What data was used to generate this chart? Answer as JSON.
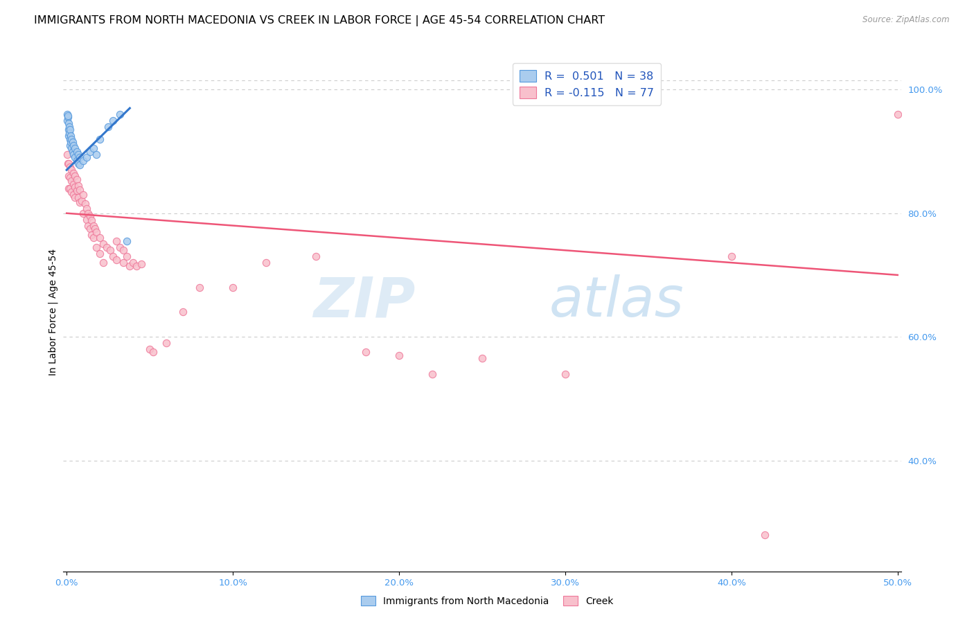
{
  "title": "IMMIGRANTS FROM NORTH MACEDONIA VS CREEK IN LABOR FORCE | AGE 45-54 CORRELATION CHART",
  "source": "Source: ZipAtlas.com",
  "ylabel": "In Labor Force | Age 45-54",
  "xlim": [
    -0.002,
    0.502
  ],
  "ylim": [
    0.22,
    1.06
  ],
  "xticks": [
    0.0,
    0.1,
    0.2,
    0.3,
    0.4,
    0.5
  ],
  "xticklabels": [
    "0.0%",
    "10.0%",
    "20.0%",
    "30.0%",
    "40.0%",
    "50.0%"
  ],
  "yticks_right": [
    0.4,
    0.6,
    0.8,
    1.0
  ],
  "yticklabels_right": [
    "40.0%",
    "60.0%",
    "80.0%",
    "100.0%"
  ],
  "blue_color": "#aaccee",
  "pink_color": "#f8c0cc",
  "blue_edge": "#5599dd",
  "pink_edge": "#ee7799",
  "trendline_blue": "#3377cc",
  "trendline_pink": "#ee5577",
  "blue_pts": [
    [
      0.0003,
      0.95
    ],
    [
      0.0005,
      0.96
    ],
    [
      0.0007,
      0.955
    ],
    [
      0.0008,
      0.958
    ],
    [
      0.001,
      0.945
    ],
    [
      0.001,
      0.935
    ],
    [
      0.001,
      0.925
    ],
    [
      0.0015,
      0.94
    ],
    [
      0.0015,
      0.93
    ],
    [
      0.002,
      0.935
    ],
    [
      0.002,
      0.92
    ],
    [
      0.002,
      0.91
    ],
    [
      0.0025,
      0.925
    ],
    [
      0.0025,
      0.915
    ],
    [
      0.003,
      0.92
    ],
    [
      0.003,
      0.905
    ],
    [
      0.0035,
      0.915
    ],
    [
      0.0035,
      0.9
    ],
    [
      0.004,
      0.91
    ],
    [
      0.004,
      0.895
    ],
    [
      0.005,
      0.905
    ],
    [
      0.005,
      0.89
    ],
    [
      0.006,
      0.9
    ],
    [
      0.006,
      0.885
    ],
    [
      0.007,
      0.895
    ],
    [
      0.007,
      0.88
    ],
    [
      0.008,
      0.89
    ],
    [
      0.008,
      0.878
    ],
    [
      0.01,
      0.885
    ],
    [
      0.012,
      0.89
    ],
    [
      0.014,
      0.9
    ],
    [
      0.016,
      0.905
    ],
    [
      0.018,
      0.895
    ],
    [
      0.02,
      0.92
    ],
    [
      0.025,
      0.94
    ],
    [
      0.028,
      0.95
    ],
    [
      0.032,
      0.96
    ],
    [
      0.036,
      0.755
    ]
  ],
  "pink_pts": [
    [
      0.0005,
      0.895
    ],
    [
      0.0008,
      0.88
    ],
    [
      0.001,
      0.88
    ],
    [
      0.001,
      0.86
    ],
    [
      0.001,
      0.84
    ],
    [
      0.002,
      0.875
    ],
    [
      0.002,
      0.858
    ],
    [
      0.002,
      0.84
    ],
    [
      0.003,
      0.87
    ],
    [
      0.003,
      0.852
    ],
    [
      0.003,
      0.835
    ],
    [
      0.004,
      0.865
    ],
    [
      0.004,
      0.847
    ],
    [
      0.004,
      0.83
    ],
    [
      0.005,
      0.86
    ],
    [
      0.005,
      0.842
    ],
    [
      0.005,
      0.825
    ],
    [
      0.006,
      0.855
    ],
    [
      0.006,
      0.837
    ],
    [
      0.007,
      0.845
    ],
    [
      0.007,
      0.825
    ],
    [
      0.008,
      0.838
    ],
    [
      0.008,
      0.818
    ],
    [
      0.009,
      0.82
    ],
    [
      0.01,
      0.83
    ],
    [
      0.01,
      0.8
    ],
    [
      0.011,
      0.815
    ],
    [
      0.012,
      0.808
    ],
    [
      0.012,
      0.79
    ],
    [
      0.013,
      0.8
    ],
    [
      0.013,
      0.78
    ],
    [
      0.014,
      0.795
    ],
    [
      0.014,
      0.775
    ],
    [
      0.015,
      0.788
    ],
    [
      0.015,
      0.765
    ],
    [
      0.016,
      0.78
    ],
    [
      0.016,
      0.76
    ],
    [
      0.017,
      0.775
    ],
    [
      0.018,
      0.77
    ],
    [
      0.018,
      0.745
    ],
    [
      0.02,
      0.76
    ],
    [
      0.02,
      0.735
    ],
    [
      0.022,
      0.75
    ],
    [
      0.022,
      0.72
    ],
    [
      0.024,
      0.745
    ],
    [
      0.026,
      0.74
    ],
    [
      0.028,
      0.73
    ],
    [
      0.03,
      0.755
    ],
    [
      0.03,
      0.725
    ],
    [
      0.032,
      0.745
    ],
    [
      0.034,
      0.74
    ],
    [
      0.034,
      0.72
    ],
    [
      0.036,
      0.73
    ],
    [
      0.038,
      0.715
    ],
    [
      0.04,
      0.72
    ],
    [
      0.042,
      0.715
    ],
    [
      0.045,
      0.718
    ],
    [
      0.05,
      0.58
    ],
    [
      0.052,
      0.575
    ],
    [
      0.06,
      0.59
    ],
    [
      0.07,
      0.64
    ],
    [
      0.08,
      0.68
    ],
    [
      0.1,
      0.68
    ],
    [
      0.12,
      0.72
    ],
    [
      0.15,
      0.73
    ],
    [
      0.18,
      0.575
    ],
    [
      0.2,
      0.57
    ],
    [
      0.22,
      0.54
    ],
    [
      0.25,
      0.565
    ],
    [
      0.3,
      0.54
    ],
    [
      0.32,
      1.01
    ],
    [
      0.4,
      0.73
    ],
    [
      0.42,
      0.28
    ],
    [
      0.5,
      0.96
    ]
  ],
  "blue_trend_x": [
    0.0,
    0.038
  ],
  "blue_trend_y": [
    0.87,
    0.97
  ],
  "pink_trend_x": [
    0.0,
    0.5
  ],
  "pink_trend_y": [
    0.8,
    0.7
  ],
  "watermark_zip": "ZIP",
  "watermark_atlas": "atlas",
  "background_color": "#ffffff",
  "grid_color": "#cccccc",
  "title_fontsize": 11.5,
  "label_fontsize": 10,
  "tick_fontsize": 9.5
}
